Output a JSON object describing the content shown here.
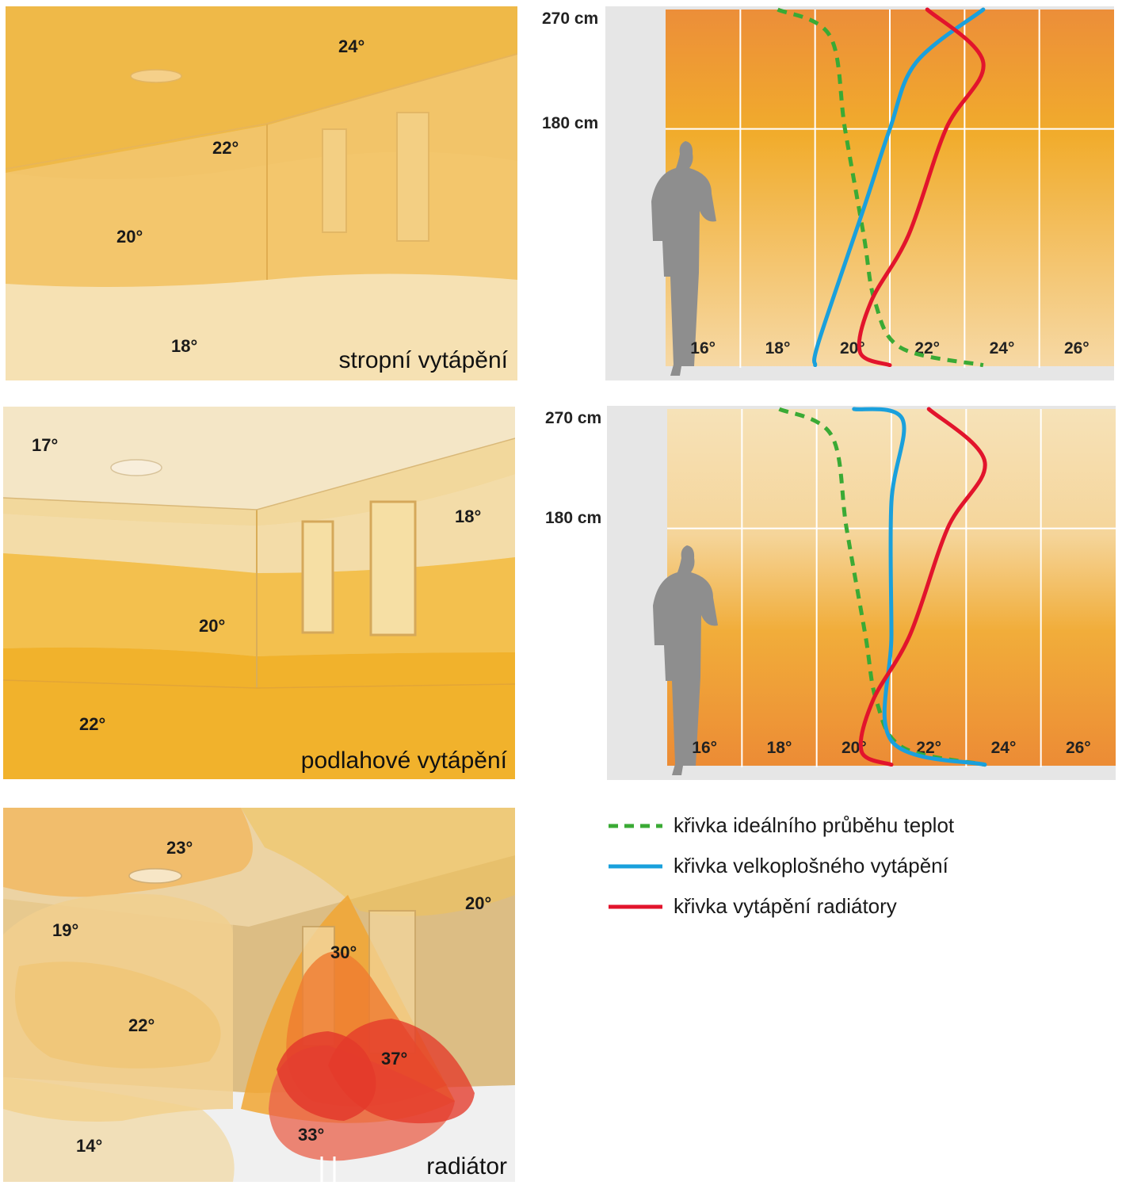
{
  "rooms": [
    {
      "caption": "stropní vytápění",
      "labels": [
        "24°",
        "22°",
        "20°",
        "18°"
      ]
    },
    {
      "caption": "podlahové vytápění",
      "labels": [
        "17°",
        "18°",
        "20°",
        "22°"
      ]
    },
    {
      "caption": "radiátor",
      "labels": [
        "23°",
        "20°",
        "19°",
        "30°",
        "22°",
        "37°",
        "33°",
        "14°"
      ]
    }
  ],
  "chart_data": [
    {
      "type": "line",
      "title": "",
      "height_labels": [
        "270 cm",
        "180 cm"
      ],
      "x_ticks": [
        "16°",
        "18°",
        "20°",
        "22°",
        "24°",
        "26°"
      ],
      "xlim": [
        15,
        27
      ],
      "ylim": [
        0,
        270
      ],
      "series": [
        {
          "id": "ideal",
          "points": [
            [
              18,
              270
            ],
            [
              19.4,
              250
            ],
            [
              19.8,
              180
            ],
            [
              20.3,
              100
            ],
            [
              20.6,
              50
            ],
            [
              21.3,
              15
            ],
            [
              23.5,
              2
            ]
          ]
        },
        {
          "id": "large-area",
          "points": [
            [
              19,
              2
            ],
            [
              19.1,
              20
            ],
            [
              20.3,
              120
            ],
            [
              21.0,
              180
            ],
            [
              21.7,
              230
            ],
            [
              23.5,
              270
            ]
          ]
        },
        {
          "id": "radiator",
          "points": [
            [
              21,
              2
            ],
            [
              20.2,
              12
            ],
            [
              20.5,
              50
            ],
            [
              21.5,
              100
            ],
            [
              22.5,
              180
            ],
            [
              23.5,
              230
            ],
            [
              22.0,
              270
            ]
          ]
        }
      ]
    },
    {
      "type": "line",
      "title": "",
      "height_labels": [
        "270 cm",
        "180 cm"
      ],
      "x_ticks": [
        "16°",
        "18°",
        "20°",
        "22°",
        "24°",
        "26°"
      ],
      "xlim": [
        15,
        27
      ],
      "ylim": [
        0,
        270
      ],
      "series": [
        {
          "id": "ideal",
          "points": [
            [
              18,
              270
            ],
            [
              19.4,
              250
            ],
            [
              19.8,
              180
            ],
            [
              20.3,
              100
            ],
            [
              20.6,
              50
            ],
            [
              21.3,
              15
            ],
            [
              23.5,
              2
            ]
          ]
        },
        {
          "id": "large-area",
          "points": [
            [
              20,
              270
            ],
            [
              21.3,
              262
            ],
            [
              21.0,
              200
            ],
            [
              21.0,
              100
            ],
            [
              21.0,
              20
            ],
            [
              23.5,
              2
            ]
          ]
        },
        {
          "id": "radiator",
          "points": [
            [
              21,
              2
            ],
            [
              20.2,
              12
            ],
            [
              20.5,
              50
            ],
            [
              21.5,
              100
            ],
            [
              22.5,
              180
            ],
            [
              23.5,
              230
            ],
            [
              22.0,
              270
            ]
          ]
        }
      ]
    }
  ],
  "legend": [
    {
      "id": "ideal",
      "label": "křivka ideálního průběhu teplot",
      "color": "#3aaa35",
      "dash": true
    },
    {
      "id": "large-area",
      "label": "křivka velkoplošného vytápění",
      "color": "#1aa0dc",
      "dash": false
    },
    {
      "id": "radiator",
      "label": "křivka vytápění radiátory",
      "color": "#e2142c",
      "dash": false
    }
  ],
  "colors": {
    "ideal": "#3aaa35",
    "large_area": "#1aa0dc",
    "radiator": "#e2142c",
    "warm_top": "#ed8a35",
    "warm_mid": "#f3a824",
    "pale": "#f6e5bd"
  }
}
